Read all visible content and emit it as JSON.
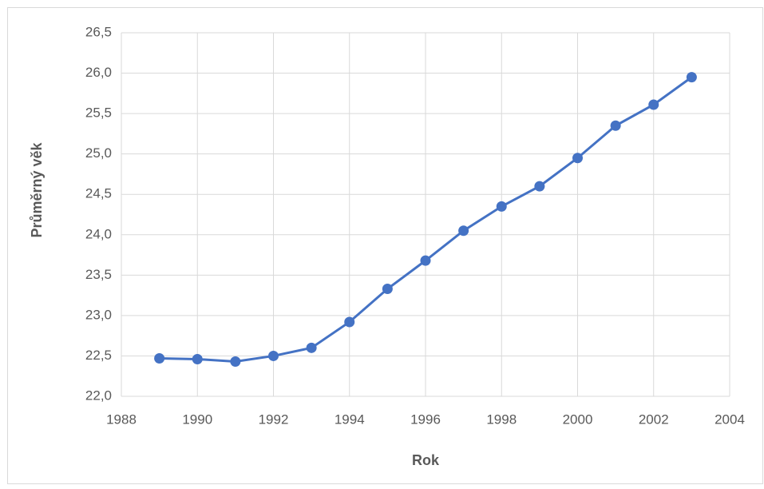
{
  "chart_data": {
    "type": "line",
    "x_label": "Rok",
    "y_label": "Průměrný věk",
    "x": [
      1989,
      1990,
      1991,
      1992,
      1993,
      1994,
      1995,
      1996,
      1997,
      1998,
      1999,
      2000,
      2001,
      2002,
      2003
    ],
    "values": [
      22.47,
      22.46,
      22.43,
      22.5,
      22.6,
      22.92,
      23.33,
      23.68,
      24.05,
      24.35,
      24.6,
      24.95,
      25.35,
      25.61,
      25.95
    ],
    "color": "#4472c4",
    "xlim": [
      1988,
      2004
    ],
    "xticks": [
      1988,
      1990,
      1992,
      1994,
      1996,
      1998,
      2000,
      2002,
      2004
    ],
    "ylim": [
      22,
      26.5
    ],
    "yticks": [
      {
        "value": 22,
        "label": "22,0"
      },
      {
        "value": 22.5,
        "label": "22,5"
      },
      {
        "value": 23,
        "label": "23,0"
      },
      {
        "value": 23.5,
        "label": "23,5"
      },
      {
        "value": 24,
        "label": "24,0"
      },
      {
        "value": 24.5,
        "label": "24,5"
      },
      {
        "value": 25,
        "label": "25,0"
      },
      {
        "value": 25.5,
        "label": "25,5"
      },
      {
        "value": 26,
        "label": "26,0"
      },
      {
        "value": 26.5,
        "label": "26,5"
      }
    ],
    "grid": true
  }
}
